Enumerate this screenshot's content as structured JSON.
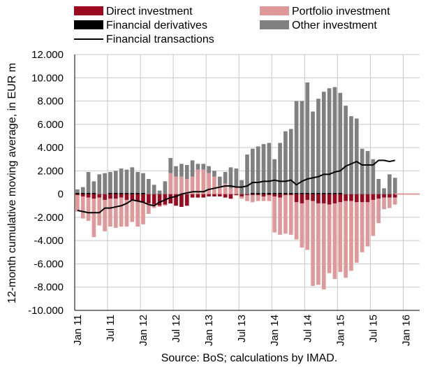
{
  "chart_data": {
    "type": "bar",
    "stacked": true,
    "ylabel": "12-month cumulative moving average, in EUR m",
    "source": "Source: BoS; calculations by IMAD.",
    "ylim": [
      -10000,
      12000
    ],
    "yticks": [
      12000,
      10000,
      8000,
      6000,
      4000,
      2000,
      0,
      -2000,
      -4000,
      -6000,
      -8000,
      -10000
    ],
    "ytick_labels": [
      "12.000",
      "10.000",
      "8.000",
      "6.000",
      "4.000",
      "2.000",
      "0",
      "-2.000",
      "-4.000",
      "-6.000",
      "-8.000",
      "-10.000"
    ],
    "x_tick_labels": [
      "Jan 11",
      "Jul 11",
      "Jan 12",
      "Jul 12",
      "Jan 13",
      "Jul 13",
      "Jan 14",
      "Jul 14",
      "Jan 15",
      "Jul 15",
      "Jan 16"
    ],
    "x_tick_every": 6,
    "grid": true,
    "legend_position": "top",
    "colors": {
      "direct": "#9b0a1e",
      "portfolio": "#e0999b",
      "derivatives": "#000000",
      "other": "#808080",
      "line": "#000000"
    },
    "categories": [
      "Jan 11",
      "Feb 11",
      "Mar 11",
      "Apr 11",
      "May 11",
      "Jun 11",
      "Jul 11",
      "Aug 11",
      "Sep 11",
      "Oct 11",
      "Nov 11",
      "Dec 11",
      "Jan 12",
      "Feb 12",
      "Mar 12",
      "Apr 12",
      "May 12",
      "Jun 12",
      "Jul 12",
      "Aug 12",
      "Sep 12",
      "Oct 12",
      "Nov 12",
      "Dec 12",
      "Jan 13",
      "Feb 13",
      "Mar 13",
      "Apr 13",
      "May 13",
      "Jun 13",
      "Jul 13",
      "Aug 13",
      "Sep 13",
      "Oct 13",
      "Nov 13",
      "Dec 13",
      "Jan 14",
      "Feb 14",
      "Mar 14",
      "Apr 14",
      "May 14",
      "Jun 14",
      "Jul 14",
      "Aug 14",
      "Sep 14",
      "Oct 14",
      "Nov 14",
      "Dec 14",
      "Jan 15",
      "Feb 15",
      "Mar 15",
      "Apr 15",
      "May 15",
      "Jun 15",
      "Jul 15",
      "Aug 15",
      "Sep 15",
      "Oct 15",
      "Nov 15"
    ],
    "series": [
      {
        "name": "Direct investment",
        "key": "direct",
        "values": [
          -100,
          -200,
          -300,
          -400,
          -300,
          -500,
          -400,
          -400,
          -300,
          -500,
          -500,
          -600,
          -700,
          -800,
          -900,
          -1000,
          -900,
          -800,
          -1000,
          -1100,
          -1000,
          -300,
          -300,
          -300,
          -200,
          -200,
          -200,
          -300,
          -400,
          -100,
          -200,
          -100,
          -100,
          -100,
          -200,
          -100,
          -200,
          -300,
          -100,
          -100,
          -700,
          -800,
          -500,
          -600,
          -800,
          -800,
          -900,
          -800,
          -700,
          -600,
          -600,
          -700,
          -700,
          -700,
          -500,
          -400,
          -300,
          -300,
          -300
        ]
      },
      {
        "name": "Portfolio investment",
        "key": "portfolio",
        "values": [
          -1400,
          -1900,
          -2000,
          -3300,
          -2400,
          -2700,
          -2400,
          -2500,
          -2500,
          -2300,
          -1900,
          -2200,
          -1900,
          -900,
          -300,
          -100,
          -100,
          1800,
          1500,
          1500,
          1300,
          1500,
          2100,
          2100,
          1800,
          1500,
          700,
          900,
          500,
          600,
          -200,
          -500,
          -600,
          -500,
          -400,
          -500,
          -3100,
          -3200,
          -3300,
          -3400,
          -3200,
          -3800,
          -4300,
          -7300,
          -7000,
          -7400,
          -5900,
          -6500,
          -6000,
          -6600,
          -6000,
          -5200,
          -4300,
          -3800,
          -3100,
          -2100,
          -1000,
          -900,
          -600
        ]
      },
      {
        "name": "Financial derivatives",
        "key": "derivatives",
        "values": [
          100,
          100,
          100,
          100,
          0,
          0,
          100,
          100,
          100,
          100,
          100,
          100,
          100,
          0,
          0,
          0,
          0,
          0,
          0,
          0,
          0,
          0,
          0,
          0,
          0,
          0,
          0,
          0,
          0,
          0,
          0,
          0,
          100,
          100,
          100,
          100,
          100,
          100,
          100,
          100,
          100,
          100,
          100,
          100,
          100,
          100,
          100,
          100,
          100,
          0,
          0,
          0,
          0,
          0,
          0,
          0,
          0,
          0,
          0
        ]
      },
      {
        "name": "Other investment",
        "key": "other",
        "values": [
          300,
          500,
          1800,
          1000,
          1700,
          1800,
          1800,
          1900,
          2100,
          2000,
          2200,
          1800,
          1700,
          1300,
          800,
          300,
          1100,
          1300,
          900,
          1100,
          1200,
          1400,
          500,
          500,
          600,
          500,
          800,
          1000,
          1800,
          1600,
          1200,
          3400,
          3800,
          4000,
          4200,
          4300,
          2900,
          4300,
          5300,
          5500,
          7900,
          7900,
          9500,
          7000,
          8100,
          8700,
          9000,
          9100,
          8600,
          7600,
          6700,
          6500,
          3900,
          3700,
          3000,
          1300,
          500,
          1700,
          1400
        ]
      }
    ],
    "line": {
      "name": "Financial transactions",
      "values": [
        -1400,
        -1500,
        -1600,
        -1600,
        -1600,
        -1200,
        -1200,
        -1100,
        -1000,
        -800,
        -500,
        -600,
        -700,
        -900,
        -1000,
        -700,
        -500,
        -300,
        -200,
        0,
        100,
        200,
        200,
        200,
        400,
        500,
        600,
        700,
        700,
        600,
        600,
        700,
        1000,
        1000,
        1100,
        1100,
        1200,
        1100,
        1100,
        1200,
        800,
        1100,
        1300,
        1400,
        1500,
        1700,
        1700,
        1900,
        2000,
        2400,
        2600,
        2800,
        2500,
        2500,
        2500,
        2900,
        2900,
        2800,
        2900
      ]
    }
  }
}
